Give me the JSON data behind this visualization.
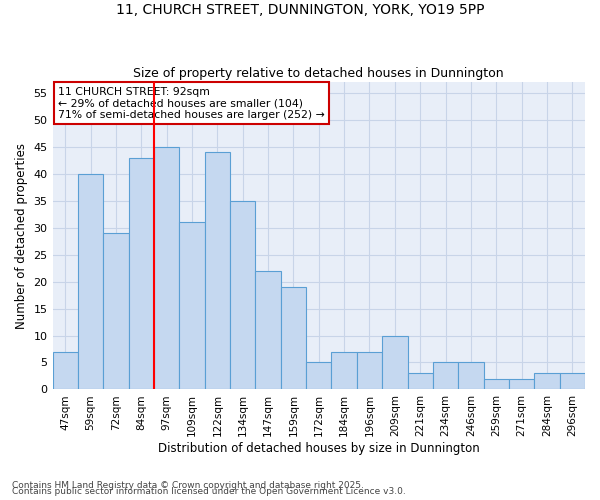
{
  "title1": "11, CHURCH STREET, DUNNINGTON, YORK, YO19 5PP",
  "title2": "Size of property relative to detached houses in Dunnington",
  "xlabel": "Distribution of detached houses by size in Dunnington",
  "ylabel": "Number of detached properties",
  "categories": [
    "47sqm",
    "59sqm",
    "72sqm",
    "84sqm",
    "97sqm",
    "109sqm",
    "122sqm",
    "134sqm",
    "147sqm",
    "159sqm",
    "172sqm",
    "184sqm",
    "196sqm",
    "209sqm",
    "221sqm",
    "234sqm",
    "246sqm",
    "259sqm",
    "271sqm",
    "284sqm",
    "296sqm"
  ],
  "values": [
    7,
    40,
    29,
    43,
    45,
    31,
    44,
    35,
    22,
    19,
    5,
    7,
    7,
    10,
    3,
    5,
    5,
    2,
    2,
    3,
    3
  ],
  "bar_color": "#c5d8f0",
  "bar_edge_color": "#5a9fd4",
  "ylim": [
    0,
    57
  ],
  "yticks": [
    0,
    5,
    10,
    15,
    20,
    25,
    30,
    35,
    40,
    45,
    50,
    55
  ],
  "red_line_x": 4.0,
  "annotation_text": "11 CHURCH STREET: 92sqm\n← 29% of detached houses are smaller (104)\n71% of semi-detached houses are larger (252) →",
  "annotation_box_color": "#ffffff",
  "annotation_box_edge": "#cc0000",
  "footer1": "Contains HM Land Registry data © Crown copyright and database right 2025.",
  "footer2": "Contains public sector information licensed under the Open Government Licence v3.0.",
  "background_color": "#ffffff",
  "plot_bg_color": "#e8eef8",
  "grid_color": "#c8d4e8"
}
